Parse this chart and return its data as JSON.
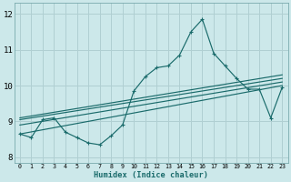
{
  "xlabel": "Humidex (Indice chaleur)",
  "ylabel": "",
  "xlim": [
    -0.5,
    23.5
  ],
  "ylim": [
    7.85,
    12.3
  ],
  "yticks": [
    8,
    9,
    10,
    11,
    12
  ],
  "xtick_labels": [
    "0",
    "1",
    "2",
    "3",
    "4",
    "5",
    "6",
    "7",
    "8",
    "9",
    "10",
    "11",
    "12",
    "13",
    "14",
    "15",
    "16",
    "17",
    "18",
    "19",
    "20",
    "21",
    "22",
    "23"
  ],
  "bg_color": "#cce8ea",
  "grid_color": "#b0cfd2",
  "line_color": "#1a6b6b",
  "jagged_line": [
    8.65,
    8.55,
    9.05,
    9.1,
    8.7,
    8.55,
    8.4,
    8.35,
    8.6,
    8.9,
    9.85,
    10.25,
    10.5,
    10.55,
    10.85,
    11.5,
    11.85,
    10.9,
    10.55,
    10.2,
    9.9,
    9.9,
    9.1,
    9.95
  ],
  "straight_lines": [
    {
      "x0": 0,
      "y0": 8.65,
      "x1": 23,
      "y1": 10.0
    },
    {
      "x0": 0,
      "y0": 8.9,
      "x1": 23,
      "y1": 10.1
    },
    {
      "x0": 0,
      "y0": 9.05,
      "x1": 23,
      "y1": 10.2
    },
    {
      "x0": 0,
      "y0": 9.1,
      "x1": 23,
      "y1": 10.3
    }
  ]
}
